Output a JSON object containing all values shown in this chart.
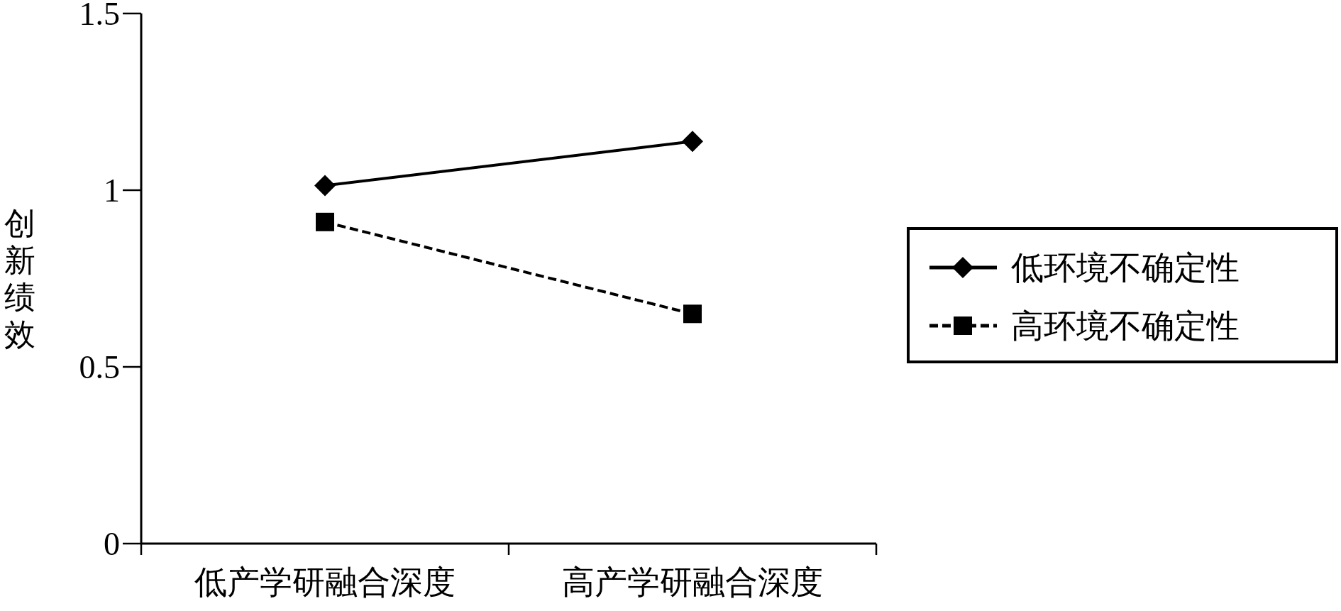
{
  "chart_data": {
    "type": "line",
    "ylabel": "创新绩效",
    "categories": [
      "低产学研融合深度",
      "高产学研融合深度"
    ],
    "series": [
      {
        "name": "低环境不确定性",
        "color": "#000000",
        "values": [
          1.013,
          1.138
        ],
        "marker": "diamond",
        "line_style": "solid"
      },
      {
        "name": "高环境不确定性",
        "color": "#000000",
        "values": [
          0.91,
          0.65
        ],
        "marker": "square",
        "line_style": "dashed"
      }
    ],
    "ylim": [
      0,
      1.5
    ],
    "yticks": [
      0,
      0.5,
      1,
      1.5
    ],
    "grid": false,
    "legend": "right"
  }
}
